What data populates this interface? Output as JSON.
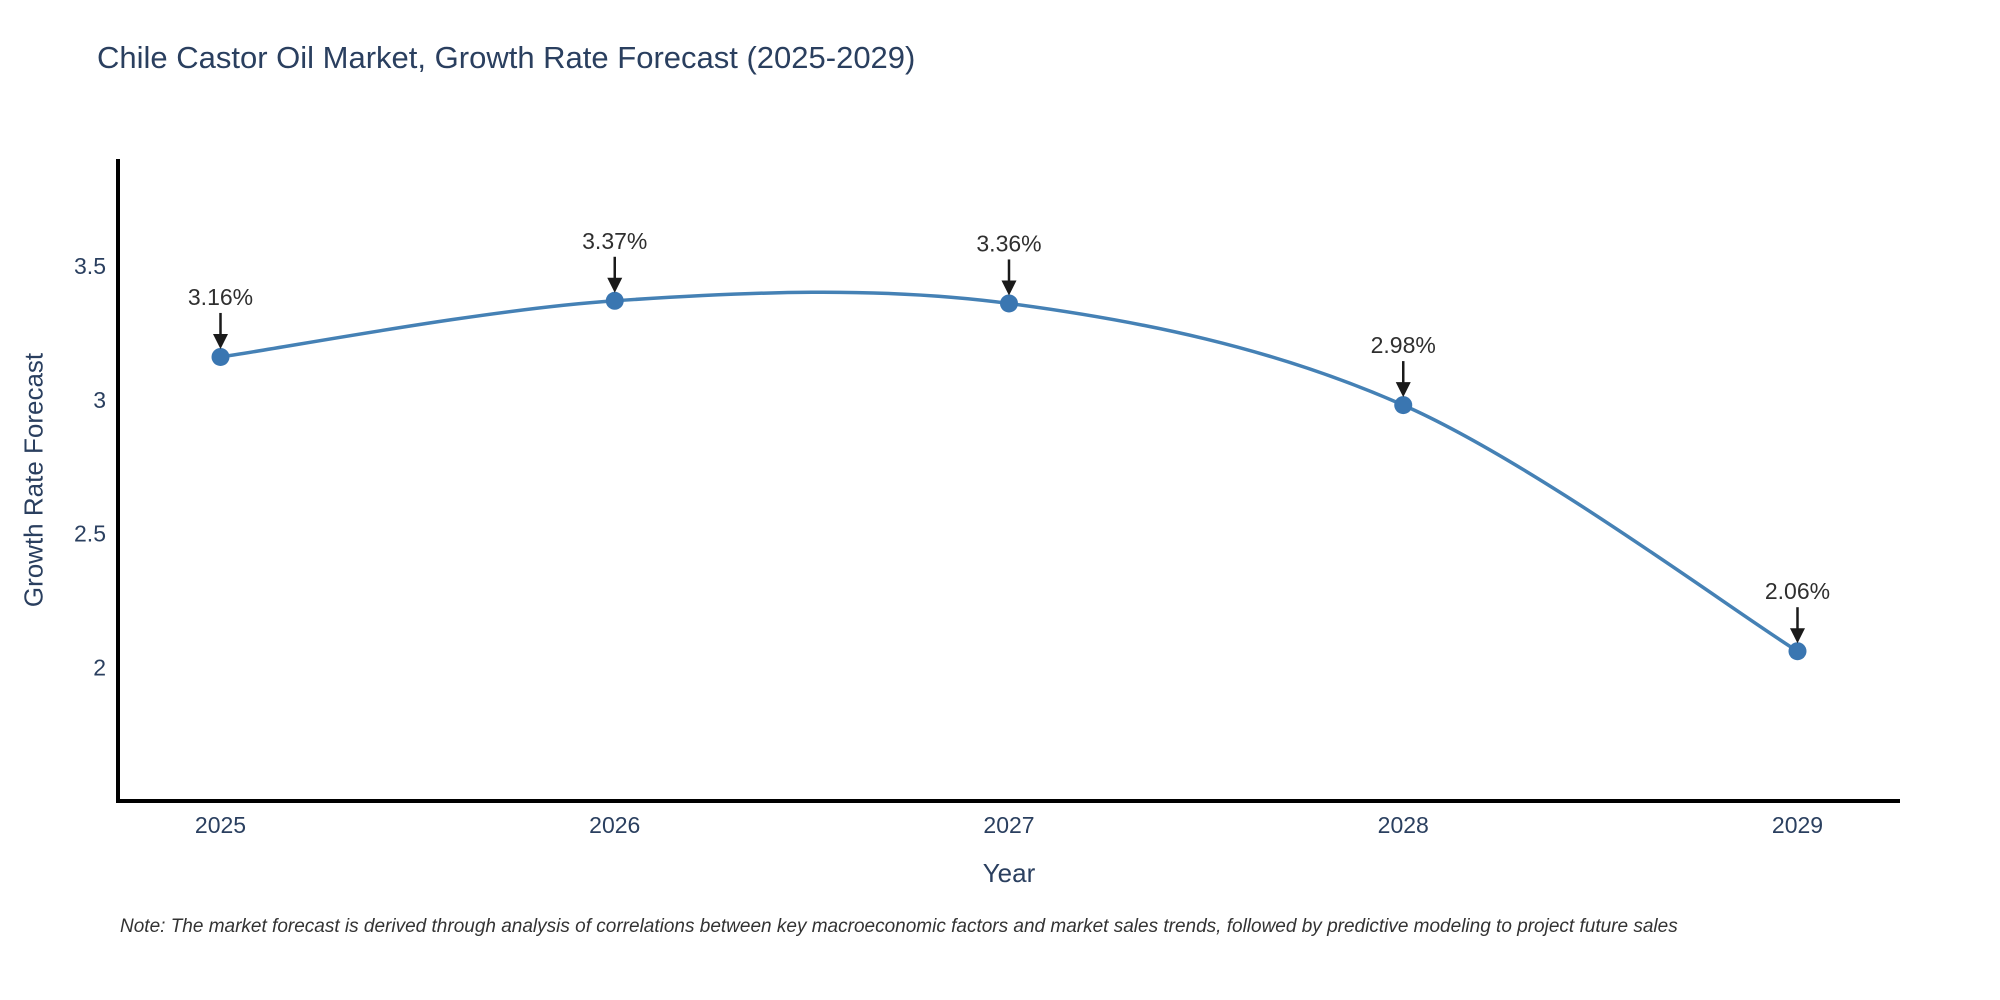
{
  "title": "Chile Castor Oil Market, Growth Rate Forecast (2025-2029)",
  "chart_data": {
    "type": "line",
    "line_shape": "spline",
    "title": "Chile Castor Oil Market, Growth Rate Forecast (2025-2029)",
    "xlabel": "Year",
    "ylabel": "Growth Rate Forecast",
    "x": [
      2025,
      2026,
      2027,
      2028,
      2029
    ],
    "values": [
      3.16,
      3.37,
      3.36,
      2.98,
      2.06
    ],
    "point_labels": [
      "3.16%",
      "3.37%",
      "3.36%",
      "2.98%",
      "2.06%"
    ],
    "xticks": [
      "2025",
      "2026",
      "2027",
      "2028",
      "2029"
    ],
    "yticks": [
      2,
      2.5,
      3,
      3.5
    ],
    "ytick_labels": [
      "2",
      "2.5",
      "3",
      "3.5"
    ],
    "xlim": [
      2024.74,
      2029.26
    ],
    "ylim": [
      1.5,
      3.9
    ],
    "grid": false,
    "legend": false,
    "colors": {
      "line": "#4581b5",
      "marker": "#3a76b1",
      "axis_line": "#000000",
      "tick_text": "#2a3f5f",
      "annotation_text": "#2f2f2f",
      "arrow": "#1a1a1a"
    }
  },
  "note": {
    "text": "Note: The market forecast is derived through analysis of correlations between key macroeconomic factors and market sales trends, followed by predictive modeling to project future sales"
  }
}
